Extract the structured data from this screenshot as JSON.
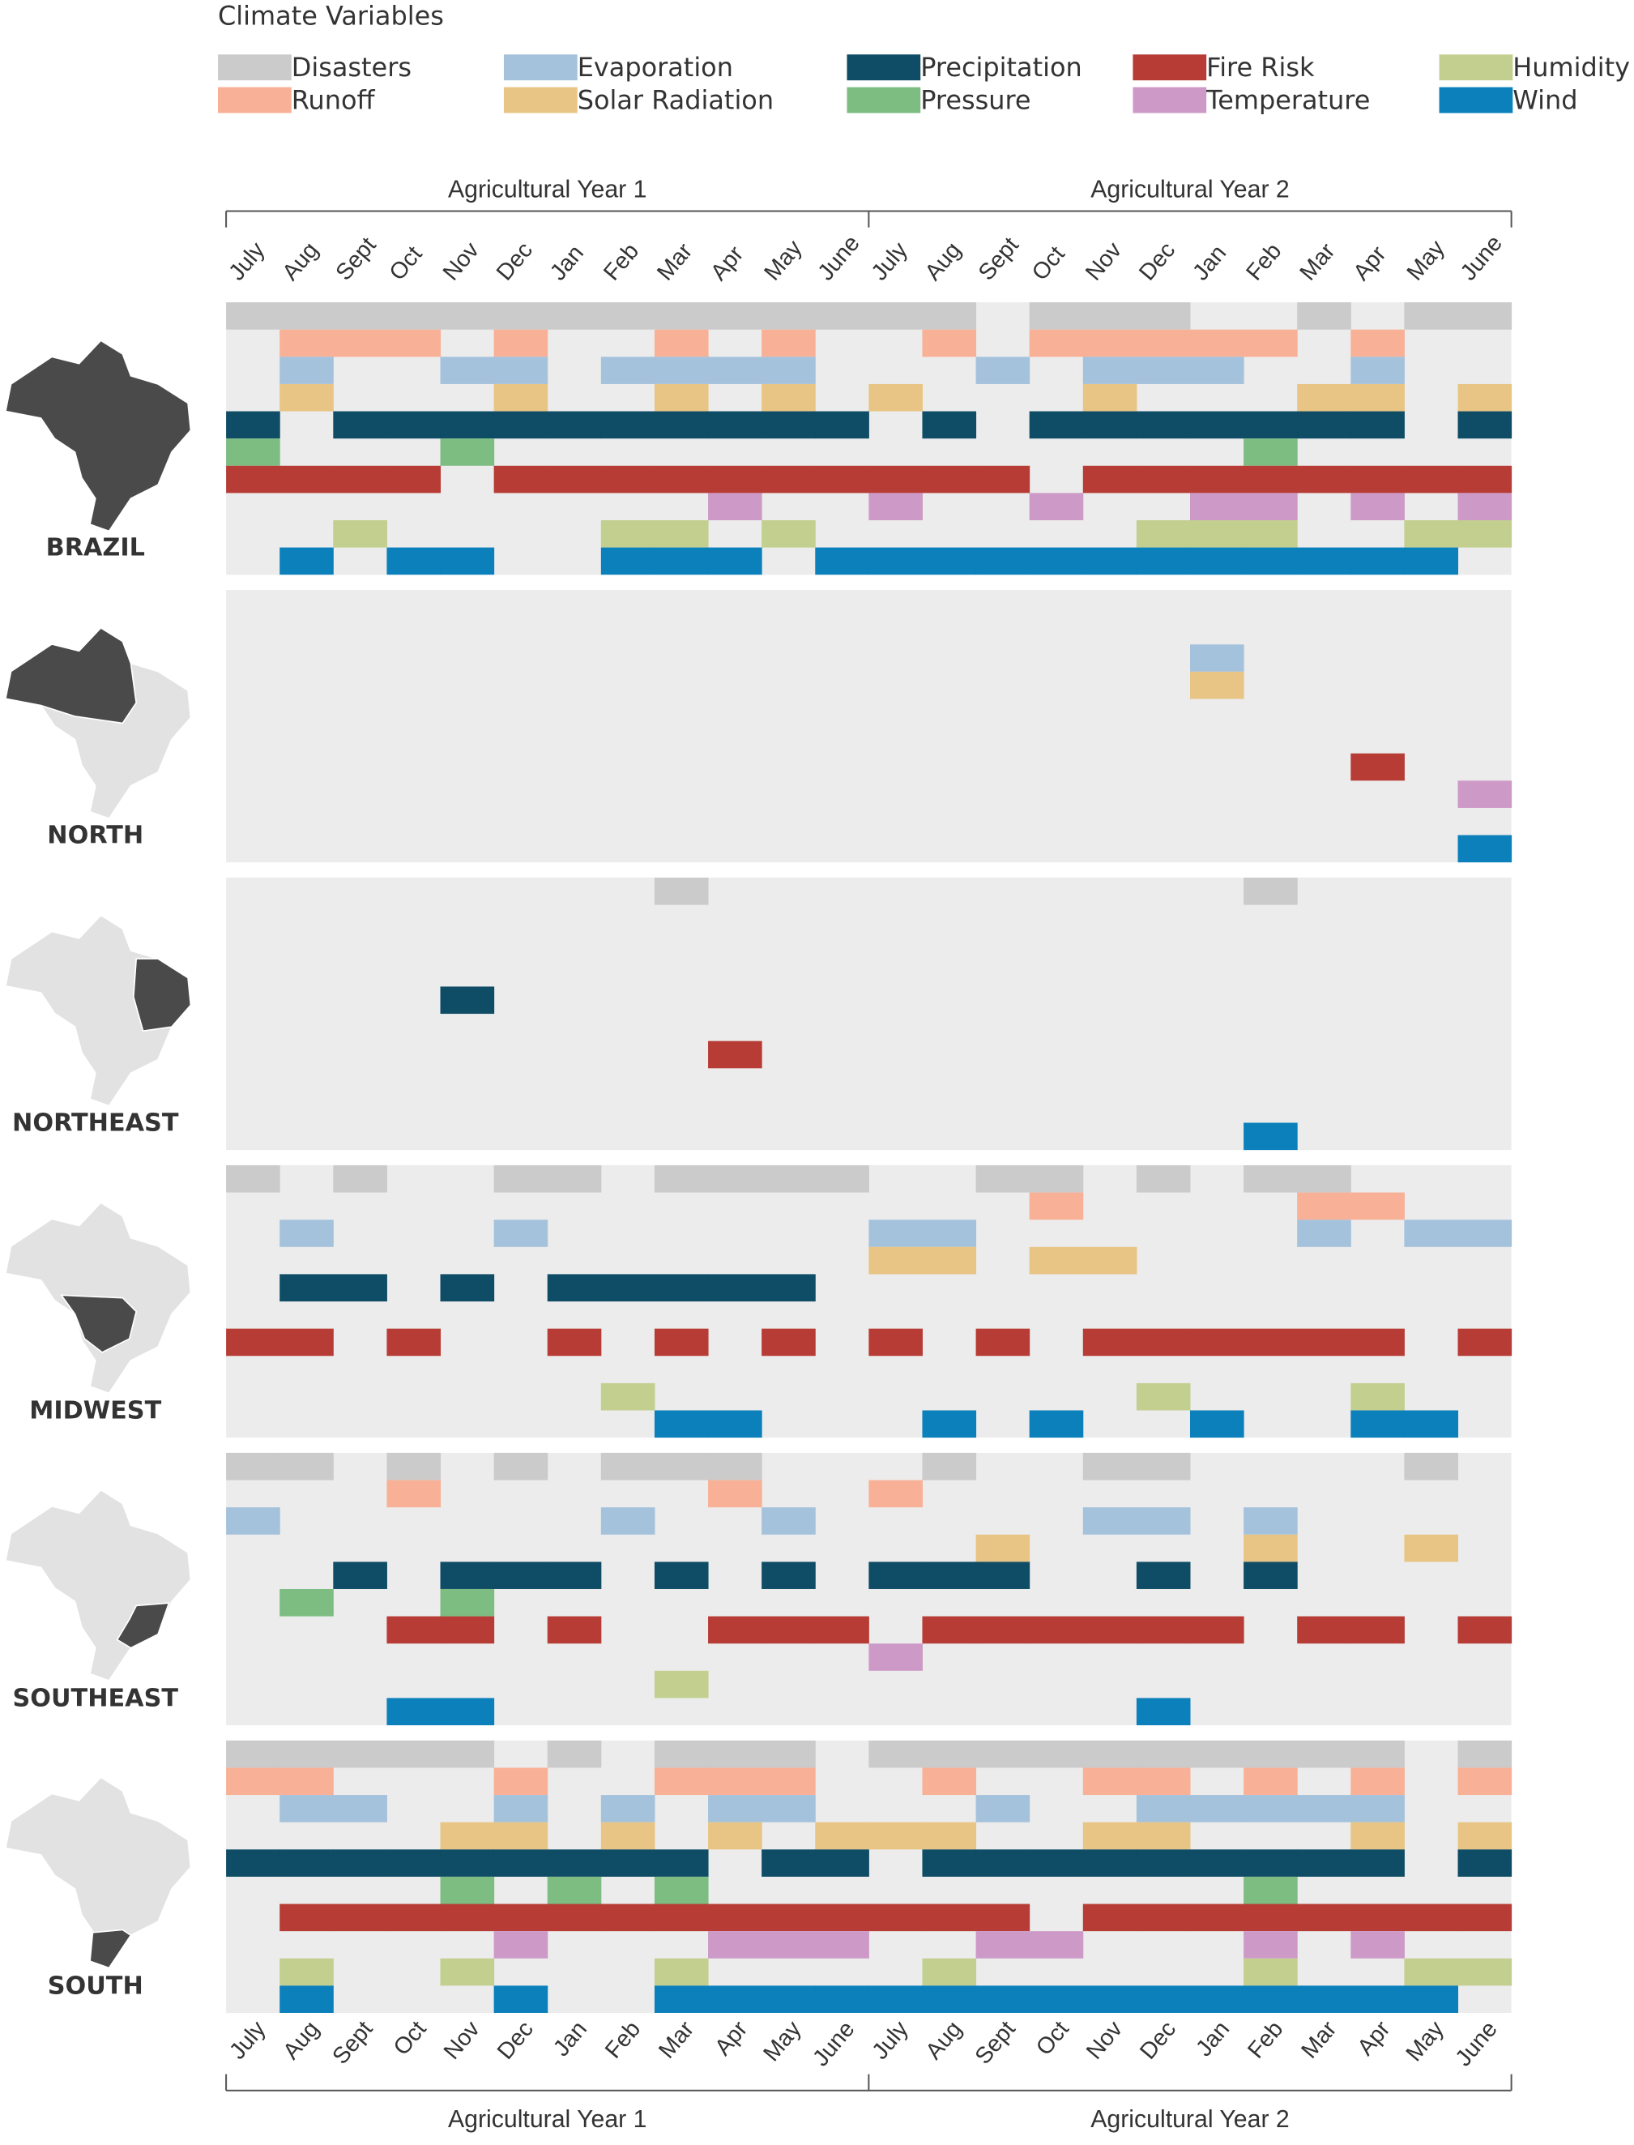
{
  "chart_data": {
    "type": "presence-grid",
    "legend_title": "Climate Variables",
    "periods": [
      "Agricultural Year 1",
      "Agricultural Year 2"
    ],
    "months": [
      "July",
      "Aug",
      "Sept",
      "Oct",
      "Nov",
      "Dec",
      "Jan",
      "Feb",
      "Mar",
      "Apr",
      "May",
      "June",
      "July",
      "Aug",
      "Sept",
      "Oct",
      "Nov",
      "Dec",
      "Jan",
      "Feb",
      "Mar",
      "Apr",
      "May",
      "June"
    ],
    "variables": [
      {
        "name": "Disasters",
        "color": "#cbcbcb"
      },
      {
        "name": "Runoff",
        "color": "#f8b196"
      },
      {
        "name": "Evaporation",
        "color": "#a5c2dc"
      },
      {
        "name": "Solar Radiation",
        "color": "#e8c584"
      },
      {
        "name": "Precipitation",
        "color": "#0f4c65"
      },
      {
        "name": "Pressure",
        "color": "#7dbd82"
      },
      {
        "name": "Fire Risk",
        "color": "#b73c35"
      },
      {
        "name": "Temperature",
        "color": "#cd9ac8"
      },
      {
        "name": "Humidity",
        "color": "#c2cf8f"
      },
      {
        "name": "Wind",
        "color": "#0b80bb"
      }
    ],
    "regions": [
      {
        "name": "BRAZIL",
        "active_months": [
          [
            0,
            1,
            2,
            3,
            4,
            5,
            6,
            7,
            8,
            9,
            10,
            11,
            12,
            13,
            15,
            16,
            17,
            20,
            22,
            23
          ],
          [
            1,
            2,
            3,
            5,
            8,
            10,
            13,
            15,
            16,
            17,
            18,
            19,
            21
          ],
          [
            1,
            4,
            5,
            7,
            8,
            9,
            10,
            14,
            16,
            17,
            18,
            21
          ],
          [
            1,
            5,
            8,
            10,
            12,
            16,
            20,
            21,
            23
          ],
          [
            0,
            2,
            3,
            4,
            5,
            6,
            7,
            8,
            9,
            10,
            11,
            13,
            15,
            16,
            17,
            18,
            19,
            20,
            21,
            23
          ],
          [
            0,
            4,
            19
          ],
          [
            0,
            1,
            2,
            3,
            5,
            6,
            7,
            8,
            9,
            10,
            11,
            12,
            13,
            14,
            16,
            17,
            18,
            19,
            20,
            21,
            22,
            23
          ],
          [
            9,
            12,
            15,
            18,
            19,
            21,
            23
          ],
          [
            2,
            7,
            8,
            10,
            17,
            18,
            19,
            22,
            23
          ],
          [
            1,
            3,
            4,
            7,
            8,
            9,
            11,
            12,
            13,
            14,
            15,
            16,
            17,
            18,
            19,
            20,
            21,
            22
          ]
        ]
      },
      {
        "name": "NORTH",
        "active_months": [
          [],
          [],
          [
            18
          ],
          [
            18
          ],
          [],
          [],
          [
            21
          ],
          [
            23
          ],
          [],
          [
            23
          ]
        ]
      },
      {
        "name": "NORTHEAST",
        "active_months": [
          [
            8,
            19
          ],
          [],
          [],
          [],
          [
            4
          ],
          [],
          [
            9
          ],
          [],
          [],
          [
            19
          ]
        ]
      },
      {
        "name": "MIDWEST",
        "active_months": [
          [
            0,
            2,
            5,
            6,
            8,
            9,
            10,
            11,
            14,
            15,
            17,
            19,
            20
          ],
          [
            15,
            20,
            21
          ],
          [
            1,
            5,
            12,
            13,
            20,
            22,
            23
          ],
          [
            12,
            13,
            15,
            16
          ],
          [
            1,
            2,
            4,
            6,
            7,
            8,
            9,
            10
          ],
          [],
          [
            0,
            1,
            3,
            6,
            8,
            10,
            12,
            14,
            16,
            17,
            18,
            19,
            20,
            21,
            23
          ],
          [],
          [
            7,
            17,
            21
          ],
          [
            8,
            9,
            13,
            15,
            18,
            21,
            22
          ]
        ]
      },
      {
        "name": "SOUTHEAST",
        "active_months": [
          [
            0,
            1,
            3,
            5,
            7,
            8,
            9,
            13,
            16,
            17,
            22
          ],
          [
            3,
            9,
            12
          ],
          [
            0,
            7,
            10,
            16,
            17,
            19
          ],
          [
            14,
            19,
            22
          ],
          [
            2,
            4,
            5,
            6,
            8,
            10,
            12,
            13,
            14,
            17,
            19
          ],
          [
            1,
            4
          ],
          [
            3,
            4,
            6,
            9,
            10,
            11,
            13,
            14,
            15,
            16,
            17,
            18,
            20,
            21,
            23
          ],
          [
            12
          ],
          [
            8
          ],
          [
            3,
            4,
            17
          ]
        ]
      },
      {
        "name": "SOUTH",
        "active_months": [
          [
            0,
            1,
            2,
            3,
            4,
            6,
            8,
            9,
            10,
            12,
            13,
            14,
            15,
            16,
            17,
            18,
            19,
            20,
            21,
            23
          ],
          [
            0,
            1,
            5,
            8,
            9,
            10,
            13,
            16,
            17,
            19,
            21,
            23
          ],
          [
            1,
            2,
            5,
            7,
            9,
            10,
            14,
            17,
            18,
            19,
            20,
            21
          ],
          [
            4,
            5,
            7,
            9,
            11,
            12,
            13,
            16,
            17,
            21,
            23
          ],
          [
            0,
            1,
            2,
            3,
            4,
            5,
            6,
            7,
            8,
            10,
            11,
            13,
            14,
            15,
            16,
            17,
            18,
            19,
            20,
            21,
            23
          ],
          [
            4,
            6,
            8,
            19
          ],
          [
            1,
            2,
            3,
            4,
            5,
            6,
            7,
            8,
            9,
            10,
            11,
            12,
            13,
            14,
            16,
            17,
            18,
            19,
            20,
            21,
            22,
            23
          ],
          [
            5,
            9,
            10,
            11,
            14,
            15,
            19,
            21
          ],
          [
            1,
            4,
            8,
            13,
            19,
            22,
            23
          ],
          [
            1,
            5,
            8,
            9,
            10,
            11,
            12,
            13,
            14,
            15,
            16,
            17,
            18,
            19,
            20,
            21,
            22
          ]
        ]
      }
    ]
  }
}
